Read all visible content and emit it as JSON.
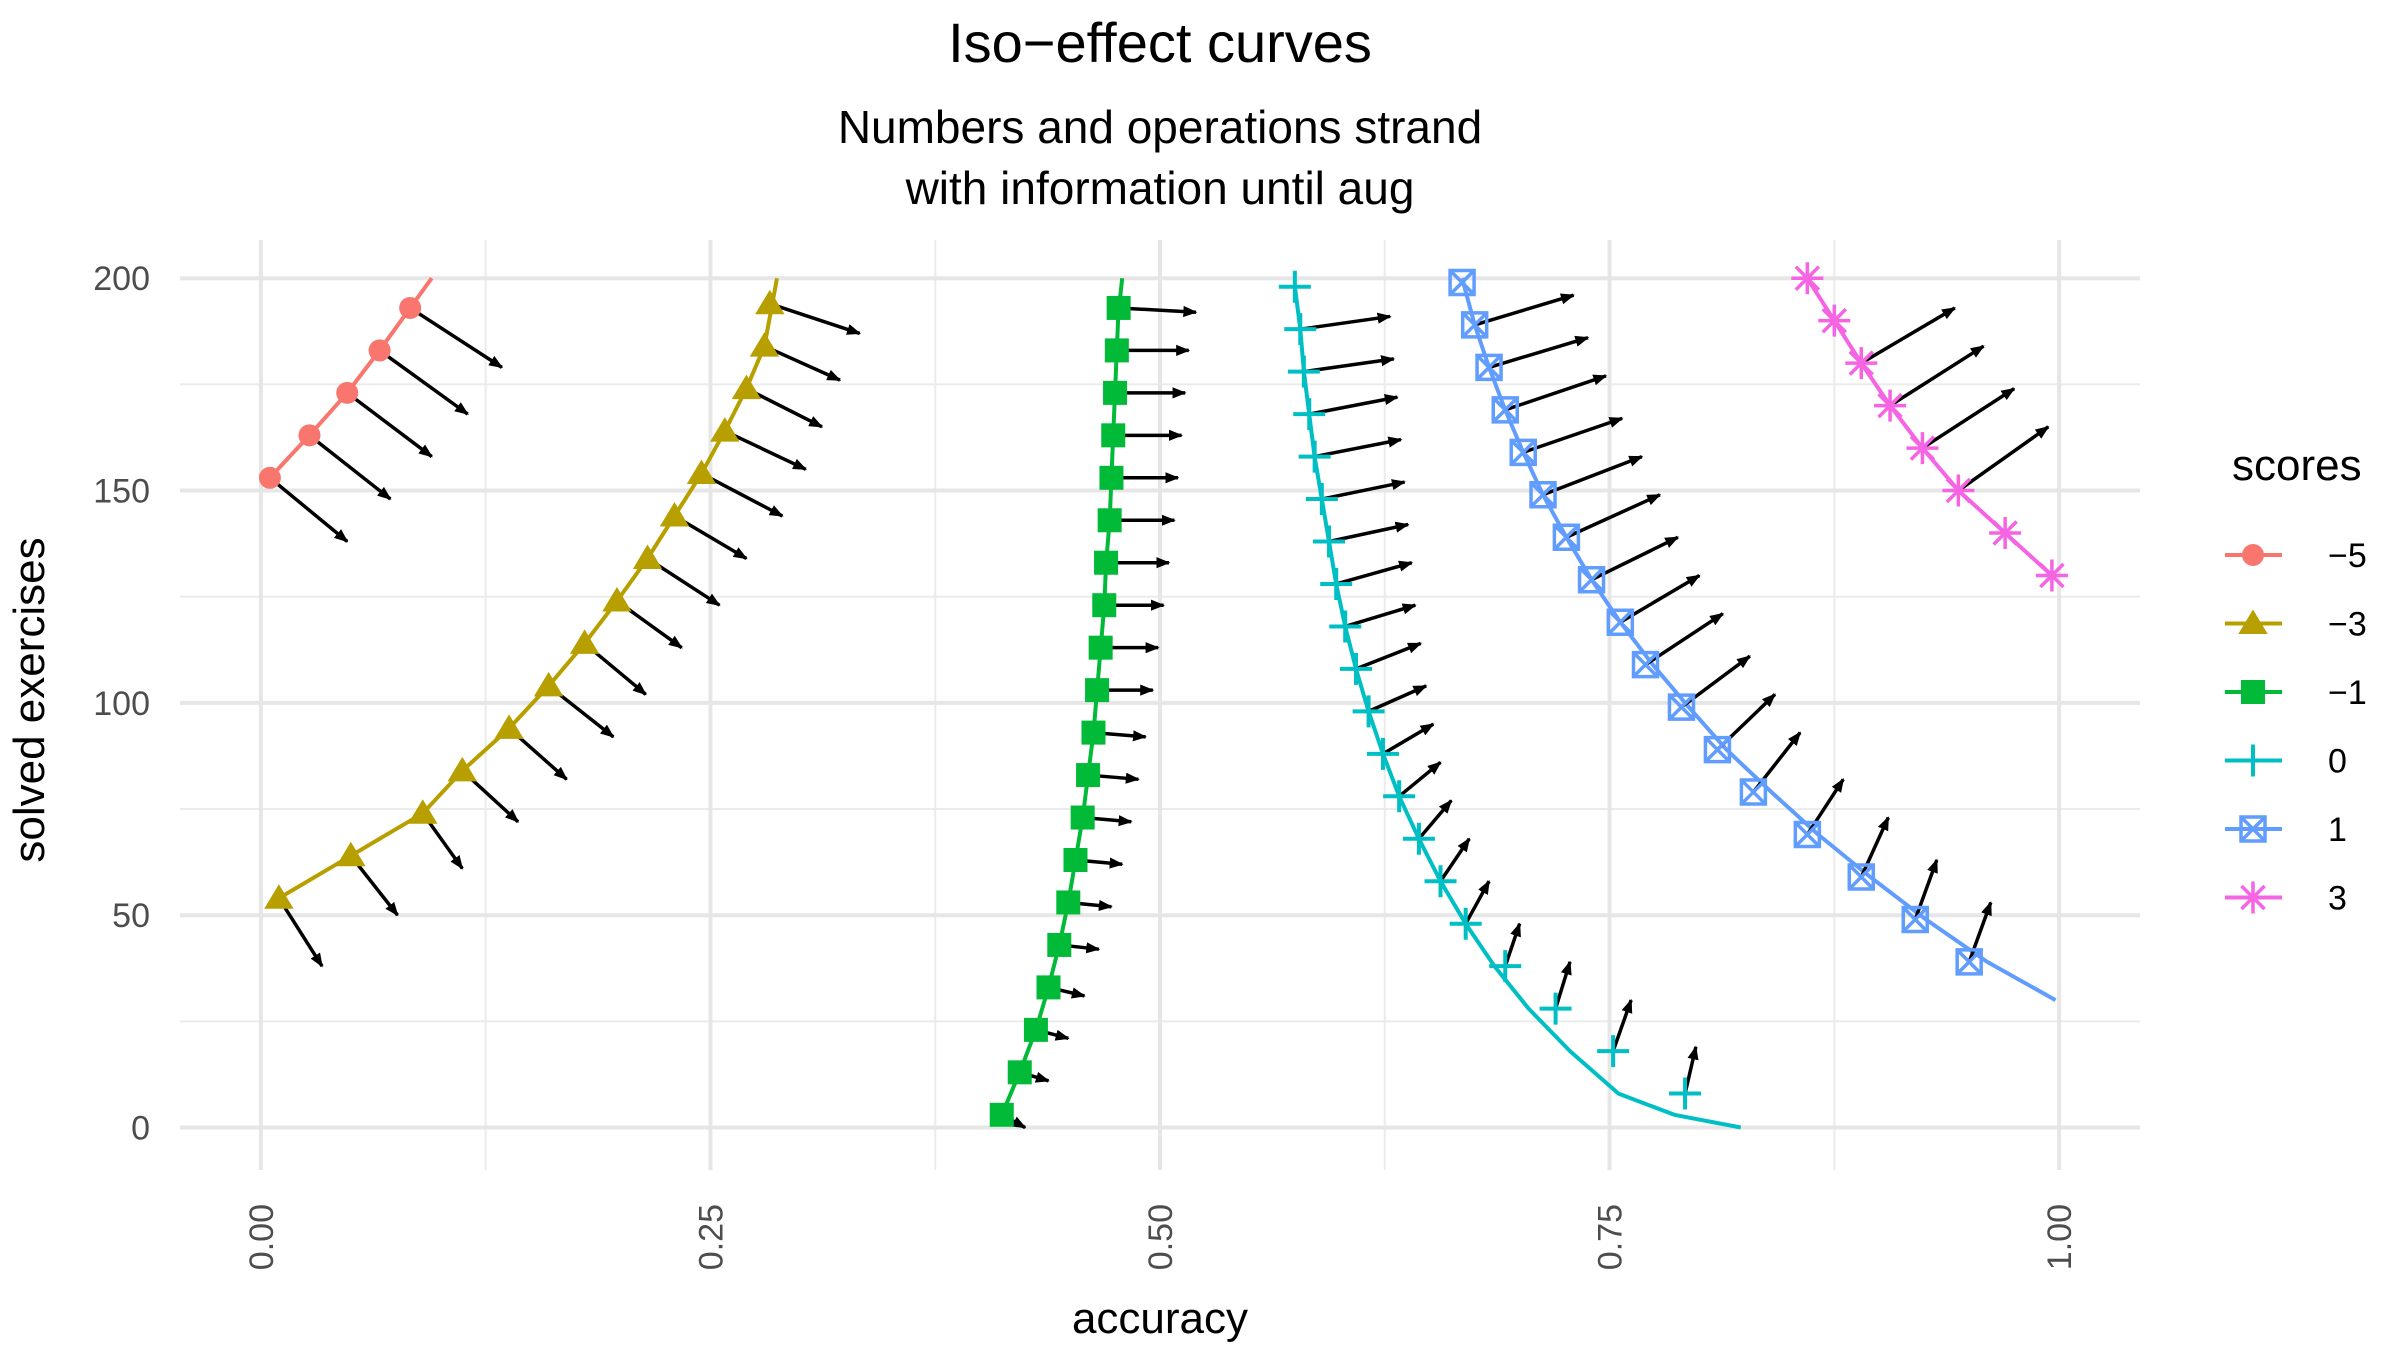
{
  "chart_data": {
    "type": "line",
    "title": "Iso−effect curves",
    "subtitle_lines": [
      "Numbers and operations strand",
      "with information until aug"
    ],
    "xlabel": "accuracy",
    "ylabel": "solved exercises",
    "xlim": [
      -0.045,
      1.045
    ],
    "ylim": [
      -10,
      209
    ],
    "x_ticks": [
      {
        "value": 0.0,
        "label": "0.00"
      },
      {
        "value": 0.25,
        "label": "0.25"
      },
      {
        "value": 0.5,
        "label": "0.50"
      },
      {
        "value": 0.75,
        "label": "0.75"
      },
      {
        "value": 1.0,
        "label": "1.00"
      }
    ],
    "y_ticks": [
      {
        "value": 0,
        "label": "0"
      },
      {
        "value": 50,
        "label": "50"
      },
      {
        "value": 100,
        "label": "100"
      },
      {
        "value": 150,
        "label": "150"
      },
      {
        "value": 200,
        "label": "200"
      }
    ],
    "legend_title": "scores",
    "series": [
      {
        "name": "−5",
        "label": "−5",
        "color": "#F8766D",
        "marker": "circle",
        "curve_x": [
          0.005,
          0.027,
          0.048,
          0.066,
          0.083,
          0.095
        ],
        "curve_y": [
          153,
          163,
          173,
          183,
          193,
          200
        ],
        "points_x": [
          0.005,
          0.027,
          0.048,
          0.066,
          0.083
        ],
        "points_y": [
          153,
          163,
          173,
          183,
          193
        ],
        "arrows": [
          [
            0.005,
            153,
            0.048,
            138
          ],
          [
            0.027,
            163,
            0.072,
            148
          ],
          [
            0.048,
            173,
            0.095,
            158
          ],
          [
            0.066,
            183,
            0.115,
            168
          ],
          [
            0.083,
            193,
            0.134,
            179
          ]
        ]
      },
      {
        "name": "−3",
        "label": "−3",
        "color": "#B79F00",
        "marker": "triangle",
        "curve_x": [
          0.01,
          0.05,
          0.09,
          0.112,
          0.138,
          0.16,
          0.18,
          0.198,
          0.215,
          0.23,
          0.245,
          0.258,
          0.27,
          0.28,
          0.287
        ],
        "curve_y": [
          54,
          64,
          74,
          84,
          94,
          104,
          114,
          124,
          134,
          144,
          154,
          164,
          174,
          184,
          200
        ],
        "points_x": [
          0.01,
          0.05,
          0.09,
          0.112,
          0.138,
          0.16,
          0.18,
          0.198,
          0.215,
          0.23,
          0.245,
          0.258,
          0.27,
          0.28,
          0.283
        ],
        "points_y": [
          54,
          64,
          74,
          84,
          94,
          104,
          114,
          124,
          134,
          144,
          154,
          164,
          174,
          184,
          194
        ],
        "arrows": [
          [
            0.01,
            54,
            0.034,
            38
          ],
          [
            0.05,
            64,
            0.076,
            50
          ],
          [
            0.09,
            74,
            0.112,
            61
          ],
          [
            0.112,
            84,
            0.143,
            72
          ],
          [
            0.138,
            94,
            0.17,
            82
          ],
          [
            0.16,
            104,
            0.196,
            92
          ],
          [
            0.18,
            114,
            0.214,
            102
          ],
          [
            0.198,
            124,
            0.234,
            113
          ],
          [
            0.215,
            134,
            0.255,
            123
          ],
          [
            0.23,
            144,
            0.27,
            134
          ],
          [
            0.245,
            154,
            0.29,
            144
          ],
          [
            0.258,
            164,
            0.303,
            155
          ],
          [
            0.27,
            174,
            0.312,
            165
          ],
          [
            0.28,
            184,
            0.322,
            176
          ],
          [
            0.283,
            194,
            0.333,
            187
          ]
        ]
      },
      {
        "name": "−1",
        "label": "−1",
        "color": "#00BA38",
        "marker": "square",
        "curve_x": [
          0.412,
          0.422,
          0.431,
          0.438,
          0.444,
          0.449,
          0.453,
          0.457,
          0.46,
          0.463,
          0.465,
          0.467,
          0.469,
          0.47,
          0.472,
          0.473,
          0.474,
          0.475,
          0.476,
          0.477,
          0.478,
          0.479
        ],
        "curve_y": [
          3,
          13,
          23,
          33,
          43,
          53,
          63,
          73,
          83,
          93,
          103,
          113,
          123,
          133,
          143,
          153,
          163,
          173,
          183,
          193,
          196,
          200
        ],
        "points_x": [
          0.412,
          0.422,
          0.431,
          0.438,
          0.444,
          0.449,
          0.453,
          0.457,
          0.46,
          0.463,
          0.465,
          0.467,
          0.469,
          0.47,
          0.472,
          0.473,
          0.474,
          0.475,
          0.476,
          0.477
        ],
        "points_y": [
          3,
          13,
          23,
          33,
          43,
          53,
          63,
          73,
          83,
          93,
          103,
          113,
          123,
          133,
          143,
          153,
          163,
          173,
          183,
          193
        ],
        "arrows": [
          [
            0.412,
            3,
            0.425,
            0
          ],
          [
            0.422,
            13,
            0.438,
            11
          ],
          [
            0.431,
            23,
            0.449,
            21
          ],
          [
            0.438,
            33,
            0.458,
            31
          ],
          [
            0.444,
            43,
            0.466,
            42
          ],
          [
            0.449,
            53,
            0.473,
            52
          ],
          [
            0.453,
            63,
            0.479,
            62
          ],
          [
            0.457,
            73,
            0.484,
            72
          ],
          [
            0.46,
            83,
            0.488,
            82
          ],
          [
            0.463,
            93,
            0.492,
            92
          ],
          [
            0.465,
            103,
            0.496,
            103
          ],
          [
            0.467,
            113,
            0.499,
            113
          ],
          [
            0.469,
            123,
            0.502,
            123
          ],
          [
            0.47,
            133,
            0.505,
            133
          ],
          [
            0.472,
            143,
            0.508,
            143
          ],
          [
            0.473,
            153,
            0.51,
            153
          ],
          [
            0.474,
            163,
            0.512,
            163
          ],
          [
            0.475,
            173,
            0.514,
            173
          ],
          [
            0.476,
            183,
            0.516,
            183
          ],
          [
            0.477,
            193,
            0.52,
            192
          ]
        ]
      },
      {
        "name": "0",
        "label": "0",
        "color": "#00BFC4",
        "marker": "plus",
        "curve_x": [
          0.575,
          0.578,
          0.58,
          0.583,
          0.586,
          0.59,
          0.594,
          0.598,
          0.603,
          0.609,
          0.616,
          0.624,
          0.633,
          0.644,
          0.656,
          0.67,
          0.686,
          0.705,
          0.728,
          0.755,
          0.786,
          0.823
        ],
        "curve_y": [
          198,
          188,
          178,
          168,
          158,
          148,
          138,
          128,
          118,
          108,
          98,
          88,
          78,
          68,
          58,
          48,
          38,
          28,
          18,
          8,
          3,
          0
        ],
        "points_x": [
          0.575,
          0.578,
          0.58,
          0.583,
          0.586,
          0.59,
          0.594,
          0.598,
          0.603,
          0.609,
          0.616,
          0.624,
          0.633,
          0.644,
          0.656,
          0.67,
          0.692,
          0.72,
          0.752,
          0.792
        ],
        "points_y": [
          198,
          188,
          178,
          168,
          158,
          148,
          138,
          128,
          118,
          108,
          98,
          88,
          78,
          68,
          58,
          48,
          38,
          28,
          18,
          8
        ],
        "arrows": [
          [
            0.578,
            188,
            0.628,
            191
          ],
          [
            0.58,
            178,
            0.63,
            181
          ],
          [
            0.583,
            168,
            0.632,
            172
          ],
          [
            0.586,
            158,
            0.634,
            162
          ],
          [
            0.59,
            148,
            0.636,
            152
          ],
          [
            0.594,
            138,
            0.638,
            142
          ],
          [
            0.598,
            128,
            0.64,
            133
          ],
          [
            0.603,
            118,
            0.642,
            123
          ],
          [
            0.609,
            108,
            0.645,
            114
          ],
          [
            0.616,
            98,
            0.648,
            104
          ],
          [
            0.624,
            88,
            0.652,
            95
          ],
          [
            0.633,
            78,
            0.656,
            86
          ],
          [
            0.644,
            68,
            0.662,
            77
          ],
          [
            0.656,
            58,
            0.672,
            68
          ],
          [
            0.67,
            48,
            0.683,
            58
          ],
          [
            0.692,
            38,
            0.7,
            48
          ],
          [
            0.72,
            28,
            0.728,
            39
          ],
          [
            0.752,
            18,
            0.762,
            30
          ],
          [
            0.792,
            8,
            0.798,
            19
          ]
        ]
      },
      {
        "name": "1",
        "label": "1",
        "color": "#619CFF",
        "marker": "square-x",
        "curve_x": [
          0.668,
          0.675,
          0.683,
          0.692,
          0.702,
          0.713,
          0.726,
          0.74,
          0.756,
          0.774,
          0.794,
          0.815,
          0.84,
          0.866,
          0.895,
          0.926,
          0.96,
          0.998
        ],
        "curve_y": [
          200,
          189,
          179,
          169,
          159,
          149,
          139,
          129,
          119,
          109,
          99,
          89,
          79,
          69,
          59,
          49,
          39,
          30
        ],
        "points_x": [
          0.668,
          0.675,
          0.683,
          0.692,
          0.702,
          0.713,
          0.726,
          0.74,
          0.756,
          0.77,
          0.79,
          0.81,
          0.83,
          0.86,
          0.89,
          0.92,
          0.95
        ],
        "points_y": [
          199,
          189,
          179,
          169,
          159,
          149,
          139,
          129,
          119,
          109,
          99,
          89,
          79,
          69,
          59,
          49,
          39
        ],
        "arrows": [
          [
            0.675,
            189,
            0.73,
            196
          ],
          [
            0.683,
            179,
            0.738,
            186
          ],
          [
            0.692,
            169,
            0.748,
            177
          ],
          [
            0.702,
            159,
            0.757,
            167
          ],
          [
            0.713,
            149,
            0.768,
            158
          ],
          [
            0.726,
            139,
            0.778,
            149
          ],
          [
            0.74,
            129,
            0.788,
            139
          ],
          [
            0.756,
            119,
            0.8,
            130
          ],
          [
            0.77,
            109,
            0.813,
            121
          ],
          [
            0.79,
            99,
            0.828,
            111
          ],
          [
            0.81,
            89,
            0.842,
            102
          ],
          [
            0.83,
            79,
            0.856,
            93
          ],
          [
            0.86,
            69,
            0.88,
            82
          ],
          [
            0.89,
            59,
            0.905,
            73
          ],
          [
            0.92,
            49,
            0.932,
            63
          ],
          [
            0.95,
            39,
            0.962,
            53
          ]
        ]
      },
      {
        "name": "3",
        "label": "3",
        "color": "#F564E3",
        "marker": "asterisk",
        "curve_x": [
          0.86,
          0.875,
          0.89,
          0.906,
          0.924,
          0.944,
          0.97,
          0.996
        ],
        "curve_y": [
          200,
          190,
          180,
          170,
          160,
          150,
          140,
          130
        ],
        "points_x": [
          0.86,
          0.875,
          0.89,
          0.906,
          0.924,
          0.944,
          0.97,
          0.996
        ],
        "points_y": [
          200,
          190,
          180,
          170,
          160,
          150,
          140,
          130
        ],
        "arrows": [
          [
            0.89,
            180,
            0.942,
            193
          ],
          [
            0.906,
            170,
            0.958,
            184
          ],
          [
            0.924,
            160,
            0.975,
            174
          ],
          [
            0.944,
            150,
            0.994,
            165
          ]
        ]
      }
    ]
  }
}
